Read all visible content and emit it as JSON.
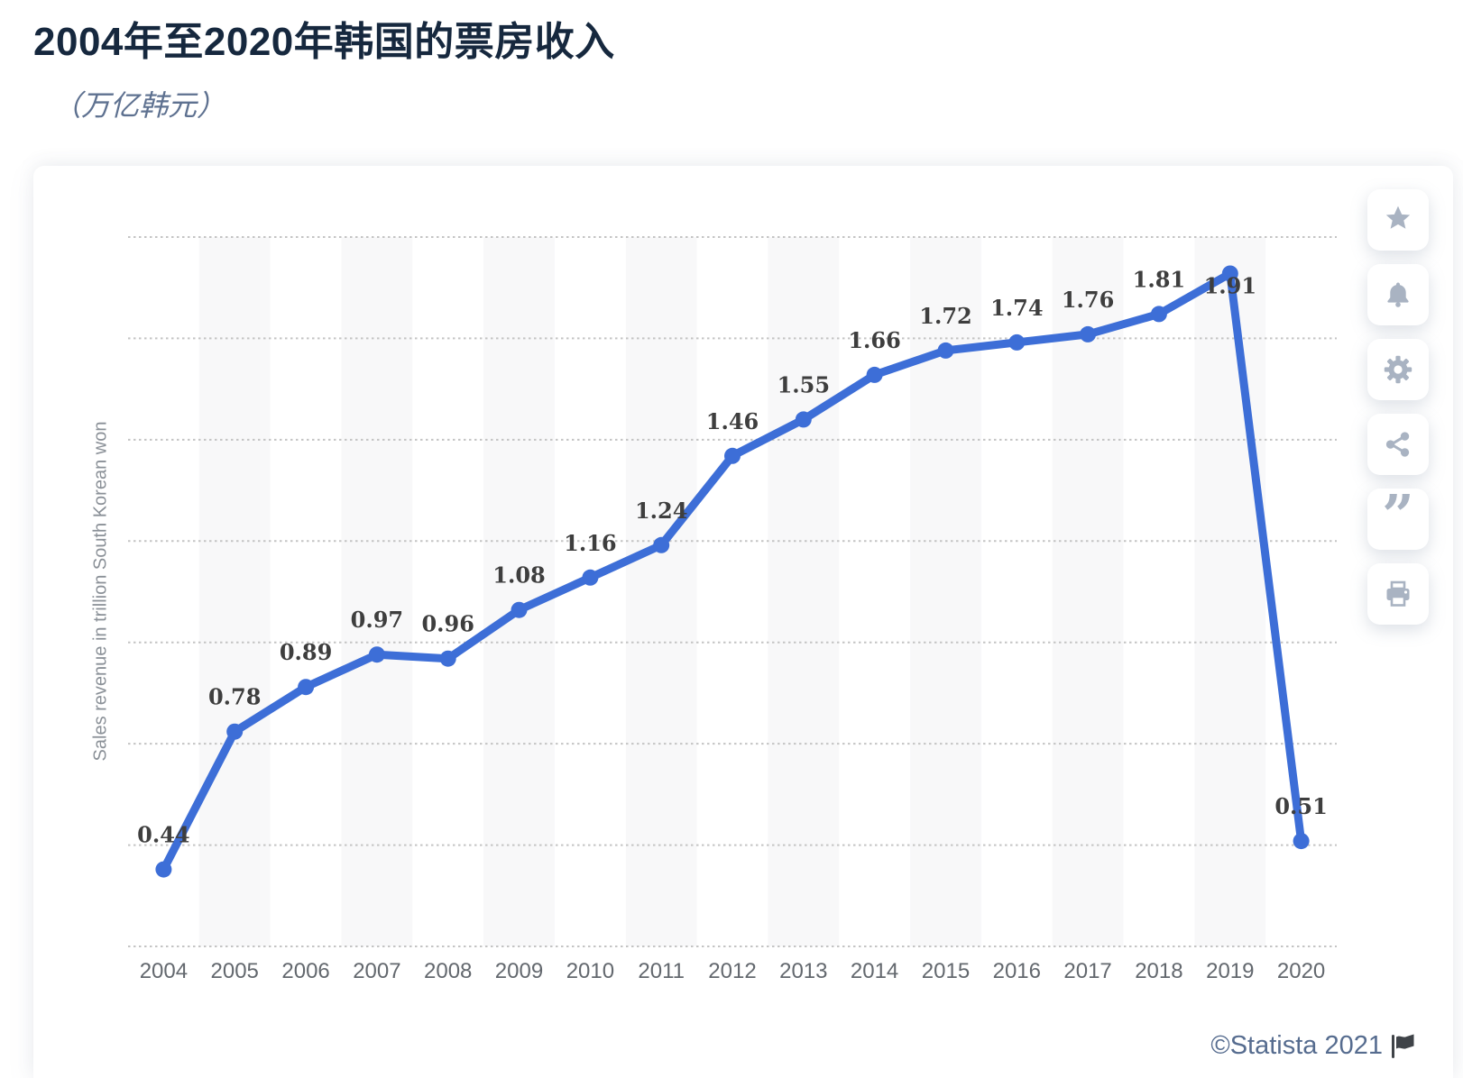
{
  "page": {
    "title": "2004年至2020年韩国的票房收入",
    "subtitle": "（万亿韩元）",
    "footer": {
      "copyright": "©Statista 2021"
    }
  },
  "toolbar": {
    "quote_glyph": "”",
    "items": [
      {
        "name": "favorite",
        "icon": "star-icon"
      },
      {
        "name": "alert",
        "icon": "bell-icon"
      },
      {
        "name": "settings",
        "icon": "gear-icon"
      },
      {
        "name": "share",
        "icon": "share-icon"
      },
      {
        "name": "cite",
        "icon": "quote-icon"
      },
      {
        "name": "print",
        "icon": "printer-icon"
      }
    ]
  },
  "colors": {
    "line": "#3D6ED7",
    "grid": "#C4C4C4",
    "band": "#F8F8F9",
    "value_label": "#3E3E3E",
    "axis_label": "#63686E",
    "y_axis_title": "#8A9097",
    "title": "#16283E",
    "subtitle": "#5E7190",
    "footer_text": "#566C8F",
    "flag": "#3F4348",
    "toolbar_icon": "#A9B3C2"
  },
  "chart_data": {
    "type": "line",
    "title": "2004年至2020年韩国的票房收入",
    "subtitle": "（万亿韩元）",
    "xlabel": "",
    "ylabel": "Sales revenue in trillion South Korean won",
    "categories": [
      "2004",
      "2005",
      "2006",
      "2007",
      "2008",
      "2009",
      "2010",
      "2011",
      "2012",
      "2013",
      "2014",
      "2015",
      "2016",
      "2017",
      "2018",
      "2019",
      "2020"
    ],
    "values": [
      0.44,
      0.78,
      0.89,
      0.97,
      0.96,
      1.08,
      1.16,
      1.24,
      1.46,
      1.55,
      1.66,
      1.72,
      1.74,
      1.76,
      1.81,
      1.91,
      0.51
    ],
    "ylim": [
      0.25,
      2.0
    ],
    "grid": {
      "horizontal": true,
      "style": "dotted",
      "step": 0.25
    },
    "legend": "none",
    "point_labels": true,
    "alternating_bands": "odd-columns",
    "layout": {
      "label_dy_default": -30,
      "label_dy_exceptions": {
        "2019": 22
      }
    }
  }
}
